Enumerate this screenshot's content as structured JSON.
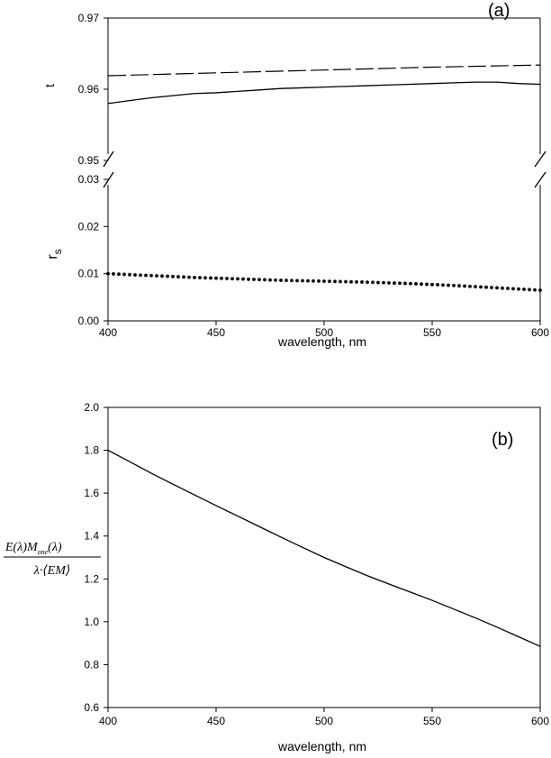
{
  "chart_data": [
    {
      "type": "line",
      "panel_label": "(a)",
      "xlabel": "wavelength, nm",
      "xlim": [
        400,
        600
      ],
      "xticks": [
        "400",
        "450",
        "500",
        "550",
        "600"
      ],
      "upper": {
        "ylabel": "t",
        "ylim": [
          0.95,
          0.97
        ],
        "yticks": [
          "0.95",
          "0.96",
          "0.97"
        ],
        "series": [
          {
            "style": "dashed",
            "x": [
              400,
              450,
              500,
              550,
              600
            ],
            "values": [
              0.9619,
              0.9623,
              0.9627,
              0.9631,
              0.9634
            ]
          },
          {
            "style": "solid",
            "x": [
              400,
              410,
              420,
              430,
              440,
              450,
              460,
              470,
              480,
              490,
              500,
              510,
              520,
              530,
              540,
              550,
              560,
              570,
              580,
              590,
              600
            ],
            "values": [
              0.958,
              0.9584,
              0.9588,
              0.9591,
              0.9594,
              0.9595,
              0.9597,
              0.9599,
              0.9601,
              0.9602,
              0.9603,
              0.9604,
              0.9605,
              0.9606,
              0.9607,
              0.9608,
              0.9609,
              0.961,
              0.961,
              0.9608,
              0.9607
            ]
          }
        ]
      },
      "lower": {
        "ylabel": "r",
        "ylabel_sub": "s",
        "ylim": [
          0.0,
          0.03
        ],
        "yticks": [
          "0.00",
          "0.01",
          "0.02",
          "0.03"
        ],
        "series": [
          {
            "style": "dotted",
            "x": [
              400,
              420,
              440,
              460,
              480,
              500,
              520,
              540,
              560,
              580,
              600
            ],
            "values": [
              0.01,
              0.0096,
              0.0092,
              0.0089,
              0.0086,
              0.0084,
              0.0082,
              0.0079,
              0.0075,
              0.007,
              0.0065
            ]
          }
        ]
      }
    },
    {
      "type": "line",
      "panel_label": "(b)",
      "xlabel": "wavelength, nm",
      "xlim": [
        400,
        600
      ],
      "ylim": [
        0.6,
        2.0
      ],
      "xticks": [
        "400",
        "450",
        "500",
        "550",
        "600"
      ],
      "yticks": [
        "0.6",
        "0.8",
        "1.0",
        "1.2",
        "1.4",
        "1.6",
        "1.8",
        "2.0"
      ],
      "ylabel_formula": {
        "numerator": "E(λ)M",
        "numerator_sub": "one",
        "numerator_end": "(λ)",
        "denominator": "λ·⟨EM⟩"
      },
      "series": [
        {
          "style": "solid",
          "x": [
            400,
            410,
            420,
            430,
            440,
            450,
            460,
            470,
            480,
            490,
            500,
            510,
            520,
            530,
            540,
            550,
            560,
            570,
            580,
            590,
            600
          ],
          "values": [
            1.8,
            1.747,
            1.693,
            1.642,
            1.592,
            1.542,
            1.493,
            1.444,
            1.395,
            1.347,
            1.3,
            1.257,
            1.215,
            1.176,
            1.138,
            1.1,
            1.059,
            1.018,
            0.975,
            0.93,
            0.885
          ]
        }
      ]
    }
  ]
}
